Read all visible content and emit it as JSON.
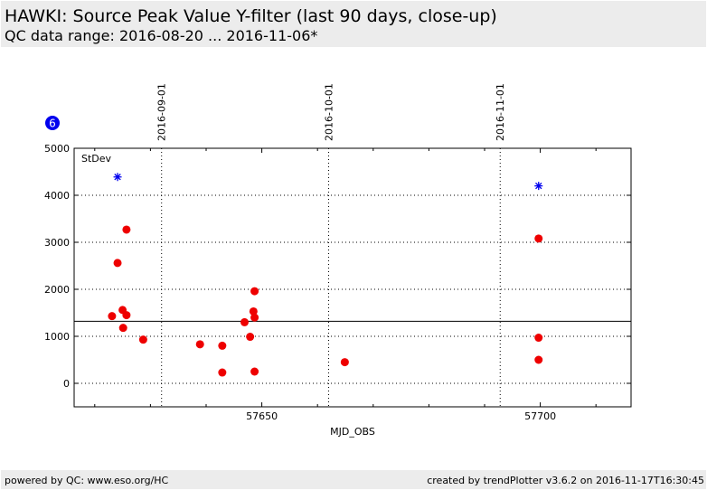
{
  "header": {
    "title": "HAWKI: Source Peak Value Y-filter (last 90 days, close-up)",
    "subtitle": "QC data range: 2016-08-20 ... 2016-11-06*"
  },
  "footer": {
    "left": "powered by QC: www.eso.org/HC",
    "right": "created by trendPlotter v3.6.2 on 2016-11-17T16:30:45"
  },
  "badge": {
    "label": "6",
    "color": "#0000ee"
  },
  "chart_data": {
    "type": "scatter",
    "xlabel": "MJD_OBS",
    "ylabel": "",
    "xlim": [
      57616.3,
      57716.3
    ],
    "ylim": [
      -500,
      5000
    ],
    "x_ticks": [
      57650,
      57700
    ],
    "y_ticks": [
      0,
      1000,
      2000,
      3000,
      4000,
      5000
    ],
    "date_marks": [
      {
        "label": "2016-09-01",
        "x": 57632.0
      },
      {
        "label": "2016-10-01",
        "x": 57662.0
      },
      {
        "label": "2016-11-01",
        "x": 57692.8
      }
    ],
    "grid": "dotted",
    "legend_text": "StDev",
    "reference_line": 1320,
    "series": [
      {
        "marker": "circle",
        "color": "#ee0000",
        "points": [
          [
            57623.1,
            1430
          ],
          [
            57624.1,
            2560
          ],
          [
            57625.0,
            1560
          ],
          [
            57625.1,
            1180
          ],
          [
            57625.7,
            3270
          ],
          [
            57625.7,
            1450
          ],
          [
            57628.7,
            930
          ],
          [
            57638.9,
            830
          ],
          [
            57642.9,
            800
          ],
          [
            57642.9,
            230
          ],
          [
            57646.9,
            1300
          ],
          [
            57647.9,
            990
          ],
          [
            57648.5,
            1530
          ],
          [
            57648.7,
            1960
          ],
          [
            57648.7,
            1400
          ],
          [
            57648.7,
            250
          ],
          [
            57664.9,
            450
          ],
          [
            57699.7,
            3080
          ],
          [
            57699.7,
            970
          ],
          [
            57699.7,
            500
          ]
        ]
      },
      {
        "marker": "star",
        "color": "#0000ee",
        "points": [
          [
            57624.1,
            4390
          ],
          [
            57699.7,
            4200
          ]
        ]
      }
    ]
  }
}
